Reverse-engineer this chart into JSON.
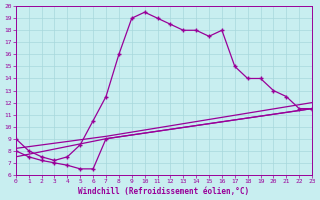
{
  "curve1_x": [
    0,
    1,
    2,
    3,
    4,
    5,
    6,
    7,
    8,
    9,
    10,
    11,
    12,
    13,
    14,
    15,
    16,
    17,
    18,
    19,
    20,
    21,
    22,
    23
  ],
  "curve1_y": [
    9.0,
    8.0,
    7.5,
    7.2,
    7.5,
    8.5,
    10.5,
    12.5,
    16.0,
    19.0,
    19.5,
    19.0,
    18.5,
    18.0,
    18.0,
    17.5,
    18.0,
    15.0,
    14.0,
    14.0,
    13.0,
    12.5,
    11.5,
    11.5
  ],
  "curve2_x": [
    0,
    1,
    2,
    3,
    4,
    5,
    6,
    7,
    23
  ],
  "curve2_y": [
    8.0,
    7.5,
    7.2,
    7.0,
    6.8,
    6.5,
    6.5,
    9.0,
    11.5
  ],
  "curve3_x": [
    0,
    7,
    23
  ],
  "curve3_y": [
    8.2,
    9.2,
    12.0
  ],
  "curve4_x": [
    0,
    7,
    23
  ],
  "curve4_y": [
    7.5,
    9.0,
    11.5
  ],
  "color": "#990099",
  "bg_color": "#c8eef0",
  "grid_color": "#a8d8dc",
  "xlabel": "Windchill (Refroidissement éolien,°C)",
  "xlim": [
    0,
    23
  ],
  "ylim": [
    6,
    20
  ],
  "xticks": [
    0,
    1,
    2,
    3,
    4,
    5,
    6,
    7,
    8,
    9,
    10,
    11,
    12,
    13,
    14,
    15,
    16,
    17,
    18,
    19,
    20,
    21,
    22,
    23
  ],
  "yticks": [
    6,
    7,
    8,
    9,
    10,
    11,
    12,
    13,
    14,
    15,
    16,
    17,
    18,
    19,
    20
  ]
}
